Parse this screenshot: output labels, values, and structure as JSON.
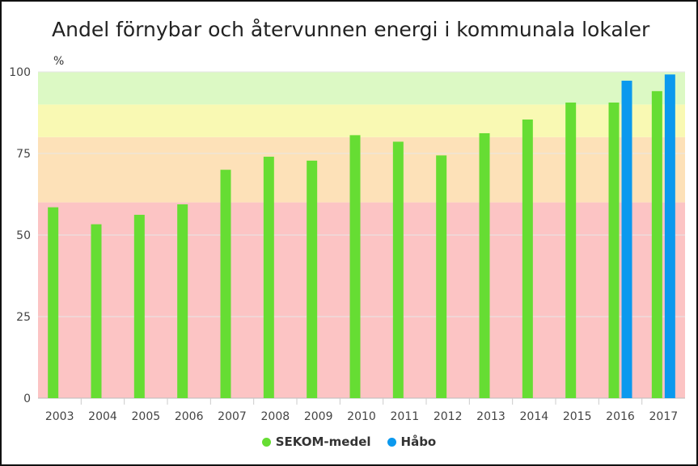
{
  "chart_data": {
    "type": "bar",
    "title": "Andel förnybar och återvunnen energi i kommunala lokaler",
    "ylabel": "%",
    "xlabel": "",
    "ylim": [
      0,
      100
    ],
    "yticks": [
      0,
      25,
      50,
      75,
      100
    ],
    "categories": [
      "2003",
      "2004",
      "2005",
      "2006",
      "2007",
      "2008",
      "2009",
      "2010",
      "2011",
      "2012",
      "2013",
      "2014",
      "2015",
      "2016",
      "2017"
    ],
    "series": [
      {
        "name": "SEKOM-medel",
        "color": "#66dd33",
        "values": [
          58.5,
          53.3,
          56.2,
          59.4,
          70.0,
          74.0,
          72.8,
          80.6,
          78.6,
          74.4,
          81.2,
          85.4,
          90.6,
          90.6,
          94.1
        ]
      },
      {
        "name": "Håbo",
        "color": "#0b99ee",
        "values": [
          null,
          null,
          null,
          null,
          null,
          null,
          null,
          null,
          null,
          null,
          null,
          null,
          null,
          97.3,
          99.2
        ]
      }
    ],
    "bands": [
      {
        "from": 0,
        "to": 60,
        "color": "#fcc4c4"
      },
      {
        "from": 60,
        "to": 80,
        "color": "#fde1b8"
      },
      {
        "from": 80,
        "to": 90,
        "color": "#f9f9b3"
      },
      {
        "from": 90,
        "to": 100,
        "color": "#dcf9c4"
      }
    ],
    "grid": true,
    "legend_position": "bottom-center"
  }
}
